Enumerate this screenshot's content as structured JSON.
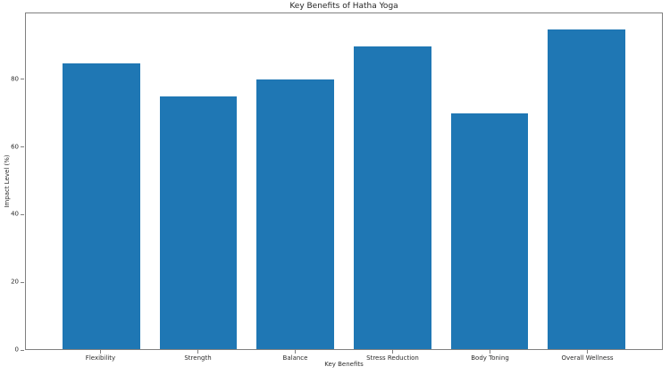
{
  "chart_data": {
    "type": "bar",
    "title": "Key Benefits of Hatha Yoga",
    "xlabel": "Key Benefits",
    "ylabel": "Impact Level (%)",
    "categories": [
      "Flexibility",
      "Strength",
      "Balance",
      "Stress Reduction",
      "Body Toning",
      "Overall Wellness"
    ],
    "values": [
      85,
      75,
      80,
      90,
      70,
      95
    ],
    "yticks": [
      0,
      20,
      40,
      60,
      80
    ],
    "ylim": [
      0,
      99.75
    ],
    "bar_color": "#1f77b4",
    "background_color": "#ffffff",
    "grid": false,
    "legend": null
  }
}
